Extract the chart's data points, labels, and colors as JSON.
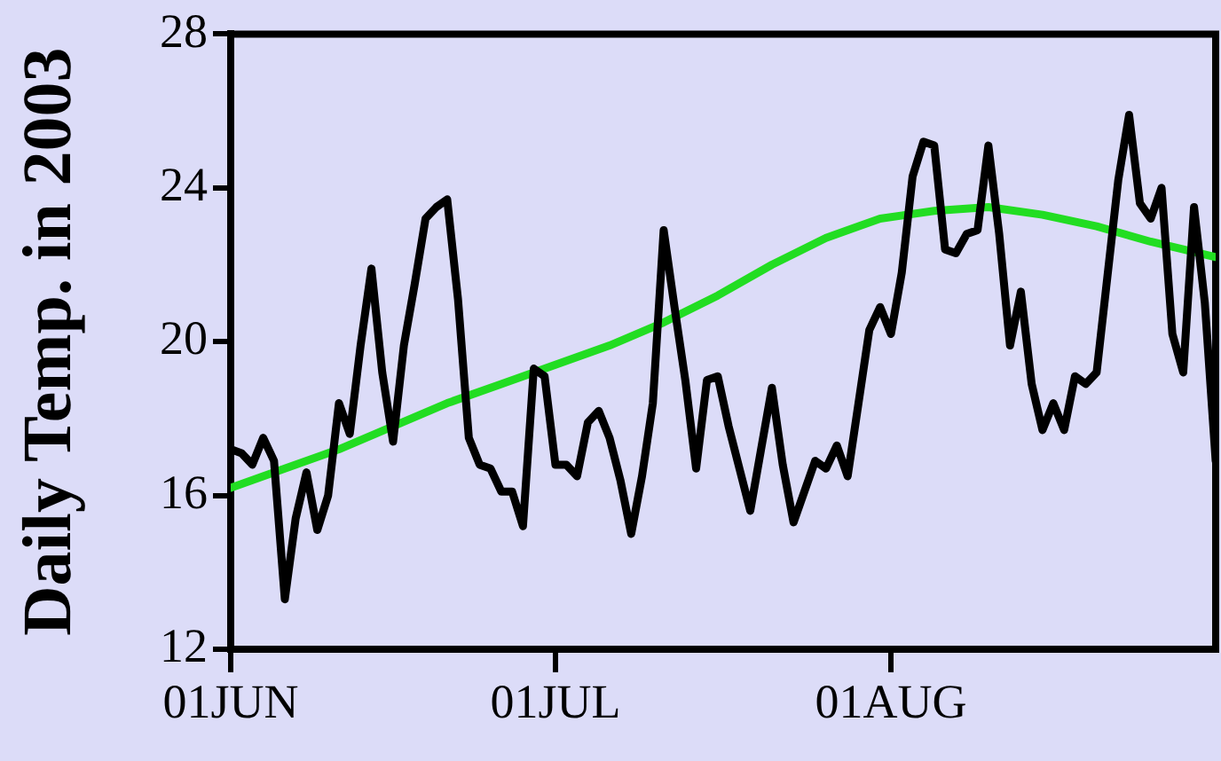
{
  "chart_data": {
    "type": "line",
    "ylabel": "Daily Temp. in 2003",
    "x": [
      "2003-06-01",
      "2003-06-02",
      "2003-06-03",
      "2003-06-04",
      "2003-06-05",
      "2003-06-06",
      "2003-06-07",
      "2003-06-08",
      "2003-06-09",
      "2003-06-10",
      "2003-06-11",
      "2003-06-12",
      "2003-06-13",
      "2003-06-14",
      "2003-06-15",
      "2003-06-16",
      "2003-06-17",
      "2003-06-18",
      "2003-06-19",
      "2003-06-20",
      "2003-06-21",
      "2003-06-22",
      "2003-06-23",
      "2003-06-24",
      "2003-06-25",
      "2003-06-26",
      "2003-06-27",
      "2003-06-28",
      "2003-06-29",
      "2003-06-30",
      "2003-07-01",
      "2003-07-02",
      "2003-07-03",
      "2003-07-04",
      "2003-07-05",
      "2003-07-06",
      "2003-07-07",
      "2003-07-08",
      "2003-07-09",
      "2003-07-10",
      "2003-07-11",
      "2003-07-12",
      "2003-07-13",
      "2003-07-14",
      "2003-07-15",
      "2003-07-16",
      "2003-07-17",
      "2003-07-18",
      "2003-07-19",
      "2003-07-20",
      "2003-07-21",
      "2003-07-22",
      "2003-07-23",
      "2003-07-24",
      "2003-07-25",
      "2003-07-26",
      "2003-07-27",
      "2003-07-28",
      "2003-07-29",
      "2003-07-30",
      "2003-07-31",
      "2003-08-01",
      "2003-08-02",
      "2003-08-03",
      "2003-08-04",
      "2003-08-05",
      "2003-08-06",
      "2003-08-07",
      "2003-08-08",
      "2003-08-09",
      "2003-08-10",
      "2003-08-11",
      "2003-08-12",
      "2003-08-13",
      "2003-08-14",
      "2003-08-15",
      "2003-08-16",
      "2003-08-17",
      "2003-08-18",
      "2003-08-19",
      "2003-08-20",
      "2003-08-21",
      "2003-08-22",
      "2003-08-23",
      "2003-08-24",
      "2003-08-25",
      "2003-08-26",
      "2003-08-27",
      "2003-08-28",
      "2003-08-29",
      "2003-08-30",
      "2003-08-31"
    ],
    "series": [
      {
        "color": "#000000",
        "values": [
          17.2,
          17.1,
          16.8,
          17.5,
          16.9,
          13.3,
          15.4,
          16.6,
          15.1,
          16.0,
          18.4,
          17.6,
          19.9,
          21.9,
          19.2,
          17.4,
          19.9,
          21.5,
          23.2,
          23.5,
          23.7,
          21.1,
          17.5,
          16.8,
          16.7,
          16.1,
          16.1,
          15.2,
          19.3,
          19.1,
          16.8,
          16.8,
          16.5,
          17.9,
          18.2,
          17.5,
          16.4,
          15.0,
          16.5,
          18.4,
          22.9,
          20.9,
          19.0,
          16.7,
          19.0,
          19.1,
          17.8,
          16.7,
          15.6,
          17.2,
          18.8,
          16.8,
          15.3,
          16.1,
          16.9,
          16.7,
          17.3,
          16.5,
          18.4,
          20.3,
          20.9,
          20.2,
          21.8,
          24.3,
          25.2,
          25.1,
          22.4,
          22.3,
          22.8,
          22.9,
          25.1,
          22.8,
          19.9,
          21.3,
          18.9,
          17.7,
          18.4,
          17.7,
          19.1,
          18.9,
          19.2,
          21.7,
          24.2,
          25.9,
          23.6,
          23.2,
          24.0,
          20.2,
          19.2,
          23.5,
          21.0,
          16.9
        ]
      },
      {
        "color": "#22dd22",
        "x": [
          "2003-06-01",
          "2003-06-06",
          "2003-06-11",
          "2003-06-16",
          "2003-06-21",
          "2003-06-26",
          "2003-07-01",
          "2003-07-06",
          "2003-07-11",
          "2003-07-16",
          "2003-07-21",
          "2003-07-26",
          "2003-07-31",
          "2003-08-05",
          "2003-08-10",
          "2003-08-15",
          "2003-08-20",
          "2003-08-25",
          "2003-08-31"
        ],
        "values": [
          16.2,
          16.7,
          17.2,
          17.8,
          18.4,
          18.9,
          19.4,
          19.9,
          20.5,
          21.2,
          22.0,
          22.7,
          23.2,
          23.4,
          23.5,
          23.3,
          23.0,
          22.6,
          22.2
        ]
      }
    ],
    "xlim": [
      "2003-06-01",
      "2003-08-31"
    ],
    "xticks": [
      {
        "value": "2003-06-01",
        "label": "01JUN"
      },
      {
        "value": "2003-07-01",
        "label": "01JUL"
      },
      {
        "value": "2003-08-01",
        "label": "01AUG"
      }
    ],
    "ylim": [
      12,
      28
    ],
    "yticks": [
      12,
      16,
      20,
      24,
      28
    ],
    "grid": false,
    "legend": false,
    "marker": "none",
    "line_style": "solid"
  }
}
